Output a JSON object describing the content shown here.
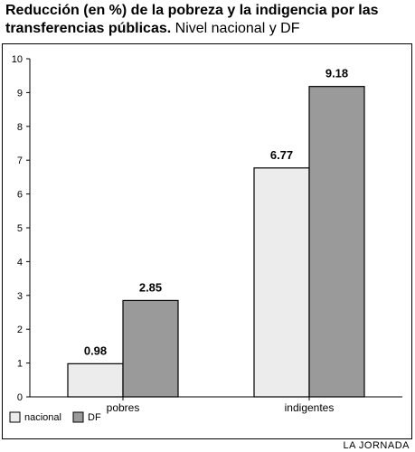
{
  "header": {
    "title_bold": "Reducción (en %) de la pobreza y la indigencia por las transferencias públicas.",
    "title_regular": "Nivel nacional y DF"
  },
  "credit": "LA JORNADA",
  "colors": {
    "nacional": "#ececec",
    "DF": "#9a9a9a",
    "axis": "#000000",
    "border": "#000000"
  },
  "chart_data": {
    "type": "bar",
    "title": "Reducción (en %) de la pobreza y la indigencia por las transferencias públicas. Nivel nacional y DF",
    "categories": [
      "pobres",
      "indigentes"
    ],
    "series": [
      {
        "name": "nacional",
        "values": [
          0.98,
          6.77
        ]
      },
      {
        "name": "DF",
        "values": [
          2.85,
          9.18
        ]
      }
    ],
    "ylim": [
      0,
      10
    ],
    "yticks": [
      0,
      1,
      2,
      3,
      4,
      5,
      6,
      7,
      8,
      9,
      10
    ],
    "xlabel": "",
    "ylabel": "",
    "grid": false,
    "legend": "bottom-left",
    "data_labels": true
  }
}
